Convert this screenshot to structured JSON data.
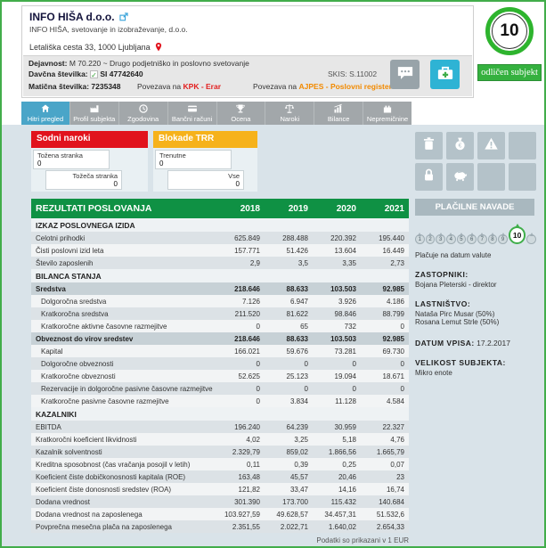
{
  "header": {
    "company_name": "INFO HIŠA d.o.o.",
    "company_full_name": "INFO HIŠA, svetovanje in izobraževanje, d.o.o.",
    "address": "Letališka cesta 33, 1000 Ljubljana",
    "activity_label": "Dejavnost:",
    "activity_value": "M 70.220 ~ Drugo podjetniško in poslovno svetovanje",
    "vat_label": "Davčna številka:",
    "vat_check": "✓",
    "vat_value": "SI 47742640",
    "reg_label": "Matična številka:",
    "reg_value": "7235348",
    "kpk_prefix": "Povezava na ",
    "kpk_link_label": "KPK - Erar",
    "skis_value": "SKIS: S.11002",
    "ajpes_prefix": "Povezava na ",
    "ajpes_link_label": "AJPES - Poslovni register"
  },
  "rating": {
    "score": "10",
    "badge_label": "odličen subjekt"
  },
  "tabs": [
    {
      "id": "hitri-pregled",
      "label": "Hitri pregled",
      "icon": "home",
      "active": true
    },
    {
      "id": "profil-subjekta",
      "label": "Profil subjekta",
      "icon": "factory",
      "active": false
    },
    {
      "id": "zgodovina",
      "label": "Zgodovina",
      "icon": "clock",
      "active": false
    },
    {
      "id": "bancni-racuni",
      "label": "Bančni računi",
      "icon": "card",
      "active": false
    },
    {
      "id": "ocena",
      "label": "Ocena",
      "icon": "trophy",
      "active": false
    },
    {
      "id": "naroki",
      "label": "Naroki",
      "icon": "scales",
      "active": false
    },
    {
      "id": "bilance",
      "label": "Bilance",
      "icon": "chart",
      "active": false
    },
    {
      "id": "nepremicnine",
      "label": "Nepremičnine",
      "icon": "building",
      "active": false
    }
  ],
  "court_box": {
    "title": "Sodni naroki",
    "fields": [
      {
        "label": "Tožena stranka",
        "value": "0"
      },
      {
        "label": "Tožeča stranka",
        "value": "0"
      }
    ]
  },
  "blockade_box": {
    "title": "Blokade TRR",
    "fields": [
      {
        "label": "Trenutne",
        "value": "0"
      },
      {
        "label": "Vse",
        "value": "0"
      }
    ]
  },
  "results_table": {
    "title": "REZULTATI POSLOVANJA",
    "years": [
      "2018",
      "2019",
      "2020",
      "2021"
    ],
    "rows": [
      {
        "type": "section",
        "label": "IZKAZ POSLOVNEGA IZIDA"
      },
      {
        "type": "row",
        "label": "Celotni prihodki",
        "values": [
          "625.849",
          "288.488",
          "220.392",
          "195.440"
        ]
      },
      {
        "type": "row",
        "label": "Čisti poslovni izid leta",
        "values": [
          "157.771",
          "51.426",
          "13.604",
          "16.449"
        ]
      },
      {
        "type": "row",
        "label": "Število zaposlenih",
        "values": [
          "2,9",
          "3,5",
          "3,35",
          "2,73"
        ]
      },
      {
        "type": "section",
        "label": "BILANCA STANJA"
      },
      {
        "type": "row",
        "bold": true,
        "label": "Sredstva",
        "values": [
          "218.646",
          "88.633",
          "103.503",
          "92.985"
        ]
      },
      {
        "type": "row",
        "indent": true,
        "label": "Dolgoročna sredstva",
        "values": [
          "7.126",
          "6.947",
          "3.926",
          "4.186"
        ]
      },
      {
        "type": "row",
        "indent": true,
        "label": "Kratkoročna sredstva",
        "values": [
          "211.520",
          "81.622",
          "98.846",
          "88.799"
        ]
      },
      {
        "type": "row",
        "indent": true,
        "label": "Kratkoročne aktivne časovne razmejitve",
        "values": [
          "0",
          "65",
          "732",
          "0"
        ]
      },
      {
        "type": "row",
        "bold": true,
        "label": "Obveznost do virov sredstev",
        "values": [
          "218.646",
          "88.633",
          "103.503",
          "92.985"
        ]
      },
      {
        "type": "row",
        "indent": true,
        "label": "Kapital",
        "values": [
          "166.021",
          "59.676",
          "73.281",
          "69.730"
        ]
      },
      {
        "type": "row",
        "indent": true,
        "label": "Dolgoročne obveznosti",
        "values": [
          "0",
          "0",
          "0",
          "0"
        ]
      },
      {
        "type": "row",
        "indent": true,
        "label": "Kratkoročne obveznosti",
        "values": [
          "52.625",
          "25.123",
          "19.094",
          "18.671"
        ]
      },
      {
        "type": "row",
        "indent": true,
        "label": "Rezervacije in dolgoročne pasivne časovne razmejitve",
        "values": [
          "0",
          "0",
          "0",
          "0"
        ]
      },
      {
        "type": "row",
        "indent": true,
        "label": "Kratkoročne pasivne časovne razmejitve",
        "values": [
          "0",
          "3.834",
          "11.128",
          "4.584"
        ]
      },
      {
        "type": "section",
        "label": "KAZALNIKI"
      },
      {
        "type": "row",
        "label": "EBITDA",
        "values": [
          "196.240",
          "64.239",
          "30.959",
          "22.327"
        ]
      },
      {
        "type": "row",
        "label": "Kratkoročni koeficient likvidnosti",
        "values": [
          "4,02",
          "3,25",
          "5,18",
          "4,76"
        ]
      },
      {
        "type": "row",
        "label": "Kazalnik solventnosti",
        "values": [
          "2.329,79",
          "859,02",
          "1.866,56",
          "1.665,79"
        ]
      },
      {
        "type": "row",
        "label": "Kreditna sposobnost (čas vračanja posojil v letih)",
        "values": [
          "0,11",
          "0,39",
          "0,25",
          "0,07"
        ]
      },
      {
        "type": "row",
        "label": "Koeficient čiste dobičkonosnosti kapitala (ROE)",
        "values": [
          "163,48",
          "45,57",
          "20,46",
          "23"
        ]
      },
      {
        "type": "row",
        "label": "Koeficient čiste donosnosti sredstev (ROA)",
        "values": [
          "121,82",
          "33,47",
          "14,16",
          "16,74"
        ]
      },
      {
        "type": "row",
        "label": "Dodana vrednost",
        "values": [
          "301.390",
          "173.700",
          "115.432",
          "140.684"
        ]
      },
      {
        "type": "row",
        "label": "Dodana vrednost na zaposlenega",
        "values": [
          "103.927,59",
          "49.628,57",
          "34.457,31",
          "51.532,6"
        ]
      },
      {
        "type": "row",
        "label": "Povprečna mesečna plača na zaposlenega",
        "values": [
          "2.351,55",
          "2.022,71",
          "1.640,02",
          "2.654,33"
        ]
      }
    ]
  },
  "sidebar": {
    "action_grid": [
      "trash",
      "money-bag",
      "warning",
      null,
      "lock",
      "piggy-bank",
      null,
      null
    ],
    "payment_habits_title": "PLAČILNE NAVADE",
    "payment_scale": {
      "values": [
        "1",
        "2",
        "3",
        "4",
        "5",
        "6",
        "7",
        "8",
        "9"
      ],
      "current": "10",
      "extra": ""
    },
    "payment_text": "Plačuje na datum valute",
    "representatives_label": "ZASTOPNIKI:",
    "representatives": "Bojana Pleterski - direktor",
    "ownership_label": "LASTNIŠTVO:",
    "owners": [
      "Nataša Pirc Musar (50%)",
      "Rosana Lemut Strle (50%)"
    ],
    "registration_date_label": "DATUM VPISA:",
    "registration_date": "17.2.2017",
    "entity_size_label": "VELIKOST SUBJEKTA:",
    "entity_size": "Mikro enote"
  },
  "footer_note": "Podatki so prikazani v 1 EUR"
}
